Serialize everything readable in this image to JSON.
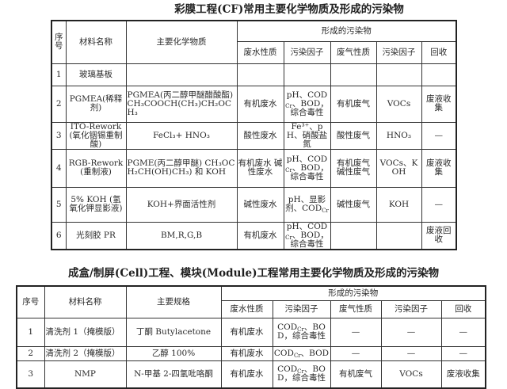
{
  "table1": {
    "title": "彩膜工程(CF)常用主要化学物质及形成的污染物",
    "header": {
      "no": "序号",
      "material": "材料名称",
      "chemical": "主要化学物质",
      "pollutants": "形成的污染物",
      "sub": [
        "废水性质",
        "污染因子",
        "废气性质",
        "污染因子",
        "回收"
      ]
    },
    "rows": [
      [
        "1",
        "玻璃基板",
        "",
        "",
        "",
        "",
        "",
        ""
      ],
      [
        "2",
        "PGMEA(稀释剂)",
        "PGMEA(丙二醇甲醚醋酸酯) CH₃COOCH(CH₃)CH₂OCH₃",
        "有机废水",
        "pH、CODCr、BOD，综合毒性",
        "有机废气",
        "VOCs",
        "废液收集"
      ],
      [
        "3",
        "ITO-Rework (氧化铟锡重制酸)",
        "FeCl₃+ HNO₃",
        "酸性废水",
        "Fe³⁺、pH、硝酸盐氮",
        "酸性废气",
        "HNO₃",
        "—"
      ],
      [
        "4",
        "RGB-Rework(重制液)",
        "PGME(丙二醇甲醚) CH₃OCH₂CH(OH)CH₃) 和 KOH",
        "有机废水 碱性废水",
        "pH、CODCr、BOD，综合毒性",
        "有机废气 碱性废气",
        "VOCs、KOH",
        "废液收集"
      ],
      [
        "5",
        "5% KOH (氢氧化钾显影液)",
        "KOH+界面活性剂",
        "碱性废水",
        "pH、显影剂、CODCr",
        "碱性废气",
        "KOH",
        "—"
      ],
      [
        "6",
        "光刻胶 PR",
        "BM,R,G,B",
        "有机废水",
        "pH、CODCr、BOD，综合毒性",
        "",
        "",
        "废液回收"
      ]
    ]
  },
  "table2": {
    "title": "成盒/制屏(Cell)工程、模块(Module)工程常用主要化学物质及形成的污染物",
    "header": {
      "no": "序号",
      "material": "材料名称",
      "chemical": "主要规格",
      "pollutants": "形成的污染物",
      "sub": [
        "废水性质",
        "污染因子",
        "废气性质",
        "污染因子",
        "回收"
      ]
    },
    "rows": [
      [
        "1",
        "清洗剂 1（掩模版）",
        "丁酮 Butylacetone",
        "有机废水",
        "CODCr、BOD，综合毒性",
        "—",
        "—",
        "—"
      ],
      [
        "2",
        "清洗剂 2（掩模版）",
        "乙醇 100%",
        "有机废水",
        "CODCr、BOD",
        "—",
        "—",
        "—"
      ],
      [
        "3",
        "NMP",
        "N-甲基 2-四氢吡咯酮",
        "有机废水",
        "CODCr、BOD，综合毒性",
        "有机废气",
        "VOCs",
        "废液收集"
      ]
    ]
  }
}
